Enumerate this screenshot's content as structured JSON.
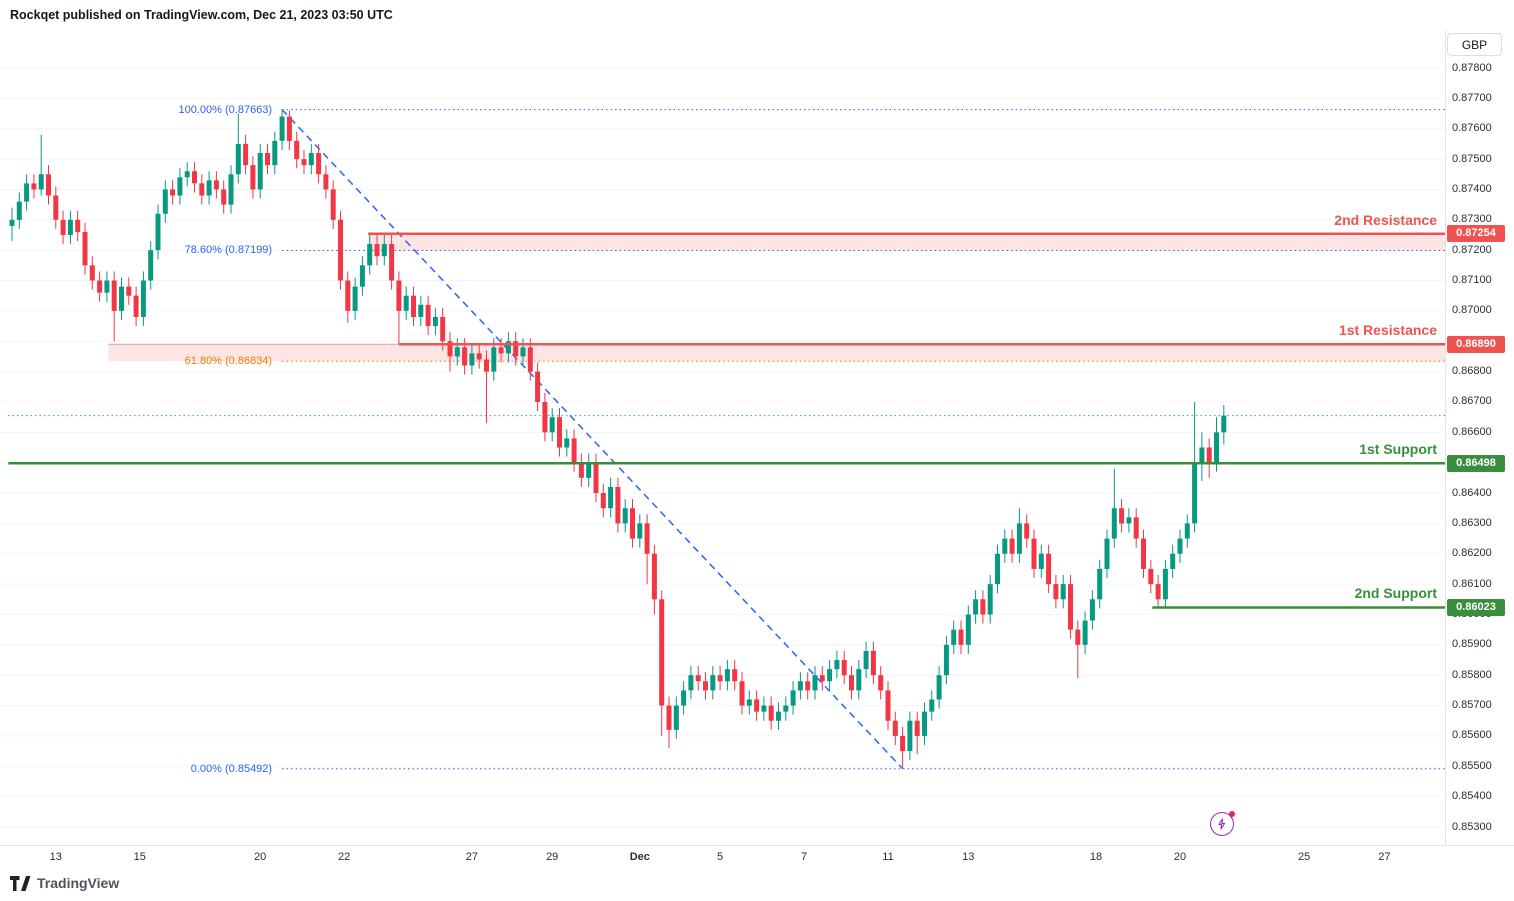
{
  "header": {
    "attribution": "Rockqet published on TradingView.com, Dec 21, 2023 03:50 UTC",
    "currency_button": "GBP"
  },
  "footer": {
    "logo_text": "TradingView"
  },
  "icons": {
    "flash": "lightning-bolt",
    "logo": "tradingview-mark"
  },
  "colors": {
    "up": "#089981",
    "down": "#f23645",
    "resistance": "#ef5350",
    "support": "#388e3c",
    "fib_blue": "#2962ff",
    "fib_orange": "#f57c00",
    "last_price": "#26a69a",
    "axis_text": "#2a2e39",
    "grid": "rgba(42,46,57,0.05)",
    "separator": "#e0e3eb"
  },
  "chart_data": {
    "type": "candlestick",
    "title": "",
    "currency": "GBP",
    "price_axis": {
      "min": 0.853,
      "max": 0.878,
      "tick_step": 0.001,
      "labels": [
        "0.87800",
        "0.87700",
        "0.87600",
        "0.87500",
        "0.87400",
        "0.87300",
        "0.87200",
        "0.87100",
        "0.87000",
        "0.86900",
        "0.86800",
        "0.86700",
        "0.86600",
        "0.86500",
        "0.86400",
        "0.86300",
        "0.86200",
        "0.86100",
        "0.86000",
        "0.85900",
        "0.85800",
        "0.85700",
        "0.85600",
        "0.85500",
        "0.85400",
        "0.85300"
      ]
    },
    "time_axis": [
      {
        "label": "13",
        "index": 6
      },
      {
        "label": "15",
        "index": 17.5
      },
      {
        "label": "20",
        "index": 34
      },
      {
        "label": "22",
        "index": 45.5
      },
      {
        "label": "27",
        "index": 63
      },
      {
        "label": "29",
        "index": 74
      },
      {
        "label": "Dec",
        "index": 86,
        "bold": true
      },
      {
        "label": "5",
        "index": 97
      },
      {
        "label": "7",
        "index": 108.5
      },
      {
        "label": "11",
        "index": 120
      },
      {
        "label": "13",
        "index": 131
      },
      {
        "label": "18",
        "index": 148.5
      },
      {
        "label": "20",
        "index": 160
      },
      {
        "label": "25",
        "index": 177
      },
      {
        "label": "27",
        "index": 188
      }
    ],
    "fib_anchor_index": 37,
    "fib_levels": [
      {
        "label": "100.00% (0.87663)",
        "price": 0.87663,
        "color": "#2962ff"
      },
      {
        "label": "78.60% (0.87199)",
        "price": 0.87199,
        "color": "#2962ff"
      },
      {
        "label": "61.80% (0.86834)",
        "price": 0.86834,
        "color": "#f57c00"
      },
      {
        "label": "0.00% (0.85492)",
        "price": 0.85492,
        "color": "#2962ff"
      }
    ],
    "trendline": {
      "start_index": 37,
      "start_price": 0.87663,
      "end_index": 122,
      "end_price": 0.85492,
      "color": "#2962ff"
    },
    "levels": [
      {
        "label": "2nd Resistance",
        "price": 0.87254,
        "badge": "0.87254",
        "color": "#ef5350",
        "start_index": 48.8
      },
      {
        "label": "1st Resistance",
        "price": 0.8689,
        "badge": "0.86890",
        "color": "#ef5350",
        "start_index": 53
      },
      {
        "label": "1st Support",
        "price": 0.86498,
        "badge": "0.86498",
        "color": "#388e3c",
        "start_index": -0.5
      },
      {
        "label": "2nd Support",
        "price": 0.86023,
        "badge": "0.86023",
        "color": "#388e3c",
        "start_index": 156.2
      }
    ],
    "zones": [
      {
        "top": 0.87254,
        "bottom": 0.87199,
        "start_index": 48.8,
        "fill": "rgba(239,83,80,0.15)"
      },
      {
        "top": 0.8689,
        "bottom": 0.86834,
        "start_index": 13.2,
        "fill": "rgba(239,83,80,0.15)"
      }
    ],
    "last_price": 0.86655,
    "candles": [
      [
        0.8728,
        0.8734,
        0.8723,
        0.873
      ],
      [
        0.873,
        0.8739,
        0.8727,
        0.8736
      ],
      [
        0.8736,
        0.8745,
        0.8733,
        0.8742
      ],
      [
        0.8742,
        0.8745,
        0.8737,
        0.874
      ],
      [
        0.874,
        0.8758,
        0.8738,
        0.8745
      ],
      [
        0.8745,
        0.8748,
        0.8735,
        0.8738
      ],
      [
        0.8738,
        0.8741,
        0.8727,
        0.873
      ],
      [
        0.873,
        0.8733,
        0.8722,
        0.8725
      ],
      [
        0.8725,
        0.8733,
        0.8722,
        0.873
      ],
      [
        0.873,
        0.8733,
        0.8723,
        0.8726
      ],
      [
        0.8726,
        0.8729,
        0.8712,
        0.8715
      ],
      [
        0.8715,
        0.8718,
        0.8707,
        0.871
      ],
      [
        0.871,
        0.8713,
        0.8703,
        0.8706
      ],
      [
        0.8706,
        0.8713,
        0.8703,
        0.871
      ],
      [
        0.871,
        0.8713,
        0.869,
        0.87
      ],
      [
        0.87,
        0.8711,
        0.8697,
        0.8708
      ],
      [
        0.8708,
        0.8711,
        0.8702,
        0.8705
      ],
      [
        0.8705,
        0.8708,
        0.8695,
        0.8698
      ],
      [
        0.8698,
        0.8713,
        0.8695,
        0.871
      ],
      [
        0.871,
        0.8723,
        0.8707,
        0.872
      ],
      [
        0.872,
        0.8735,
        0.8717,
        0.8732
      ],
      [
        0.8732,
        0.8743,
        0.8729,
        0.874
      ],
      [
        0.874,
        0.8743,
        0.8735,
        0.8738
      ],
      [
        0.8738,
        0.8747,
        0.8735,
        0.8744
      ],
      [
        0.8744,
        0.8749,
        0.8741,
        0.8746
      ],
      [
        0.8746,
        0.8749,
        0.8739,
        0.8742
      ],
      [
        0.8742,
        0.8745,
        0.8735,
        0.8738
      ],
      [
        0.8738,
        0.8746,
        0.8735,
        0.8743
      ],
      [
        0.8743,
        0.8746,
        0.8737,
        0.874
      ],
      [
        0.874,
        0.8743,
        0.8732,
        0.8735
      ],
      [
        0.8735,
        0.8748,
        0.8732,
        0.8745
      ],
      [
        0.8745,
        0.8765,
        0.8742,
        0.8755
      ],
      [
        0.8755,
        0.8758,
        0.8745,
        0.8748
      ],
      [
        0.8748,
        0.8751,
        0.8737,
        0.874
      ],
      [
        0.874,
        0.8755,
        0.8737,
        0.8752
      ],
      [
        0.8752,
        0.8755,
        0.8745,
        0.8748
      ],
      [
        0.8748,
        0.8759,
        0.8745,
        0.8756
      ],
      [
        0.8756,
        0.87663,
        0.8753,
        0.8764
      ],
      [
        0.8764,
        0.8766,
        0.8753,
        0.8756
      ],
      [
        0.8756,
        0.8759,
        0.8747,
        0.875
      ],
      [
        0.875,
        0.8753,
        0.8745,
        0.8748
      ],
      [
        0.8748,
        0.8755,
        0.8745,
        0.8752
      ],
      [
        0.8752,
        0.8755,
        0.8742,
        0.8745
      ],
      [
        0.8745,
        0.8748,
        0.8737,
        0.874
      ],
      [
        0.874,
        0.8743,
        0.8727,
        0.873
      ],
      [
        0.873,
        0.8733,
        0.8707,
        0.871
      ],
      [
        0.871,
        0.8713,
        0.8696,
        0.87
      ],
      [
        0.87,
        0.8711,
        0.8697,
        0.8708
      ],
      [
        0.8708,
        0.8718,
        0.8705,
        0.8715
      ],
      [
        0.8715,
        0.87254,
        0.8712,
        0.8722
      ],
      [
        0.8722,
        0.8725,
        0.8715,
        0.8718
      ],
      [
        0.8718,
        0.8725,
        0.8715,
        0.8722
      ],
      [
        0.8722,
        0.8725,
        0.8707,
        0.871
      ],
      [
        0.871,
        0.8713,
        0.8689,
        0.87
      ],
      [
        0.87,
        0.8708,
        0.8697,
        0.8705
      ],
      [
        0.8705,
        0.8708,
        0.8695,
        0.8698
      ],
      [
        0.8698,
        0.8705,
        0.8695,
        0.8702
      ],
      [
        0.8702,
        0.8705,
        0.8692,
        0.8695
      ],
      [
        0.8695,
        0.8701,
        0.8692,
        0.8698
      ],
      [
        0.8698,
        0.8701,
        0.8687,
        0.869
      ],
      [
        0.869,
        0.8693,
        0.868,
        0.8685
      ],
      [
        0.8685,
        0.8691,
        0.8682,
        0.8688
      ],
      [
        0.8688,
        0.8691,
        0.8679,
        0.8682
      ],
      [
        0.8682,
        0.8689,
        0.8679,
        0.8686
      ],
      [
        0.8686,
        0.8689,
        0.8681,
        0.8684
      ],
      [
        0.8684,
        0.8687,
        0.8663,
        0.868
      ],
      [
        0.868,
        0.8691,
        0.8677,
        0.8688
      ],
      [
        0.8688,
        0.8691,
        0.8683,
        0.8686
      ],
      [
        0.8686,
        0.8693,
        0.8683,
        0.869
      ],
      [
        0.869,
        0.8693,
        0.8682,
        0.8685
      ],
      [
        0.8685,
        0.8691,
        0.8682,
        0.8688
      ],
      [
        0.8688,
        0.8691,
        0.8677,
        0.868
      ],
      [
        0.868,
        0.8683,
        0.8667,
        0.867
      ],
      [
        0.867,
        0.8673,
        0.8657,
        0.866
      ],
      [
        0.866,
        0.8668,
        0.8657,
        0.8665
      ],
      [
        0.8665,
        0.8668,
        0.8652,
        0.8655
      ],
      [
        0.8655,
        0.8661,
        0.8652,
        0.8658
      ],
      [
        0.8658,
        0.8661,
        0.8647,
        0.865
      ],
      [
        0.865,
        0.8653,
        0.8642,
        0.8645
      ],
      [
        0.8645,
        0.8653,
        0.8642,
        0.865
      ],
      [
        0.865,
        0.8653,
        0.8637,
        0.864
      ],
      [
        0.864,
        0.8643,
        0.8632,
        0.8635
      ],
      [
        0.8635,
        0.8645,
        0.8632,
        0.8642
      ],
      [
        0.8642,
        0.8645,
        0.8627,
        0.863
      ],
      [
        0.863,
        0.8638,
        0.8627,
        0.8635
      ],
      [
        0.8635,
        0.8638,
        0.8622,
        0.8625
      ],
      [
        0.8625,
        0.8633,
        0.8622,
        0.863
      ],
      [
        0.863,
        0.8633,
        0.861,
        0.862
      ],
      [
        0.862,
        0.8623,
        0.86,
        0.8605
      ],
      [
        0.8605,
        0.8608,
        0.856,
        0.857
      ],
      [
        0.857,
        0.8573,
        0.8556,
        0.8562
      ],
      [
        0.8562,
        0.8573,
        0.8559,
        0.857
      ],
      [
        0.857,
        0.8578,
        0.8567,
        0.8575
      ],
      [
        0.8575,
        0.8583,
        0.8572,
        0.858
      ],
      [
        0.858,
        0.8583,
        0.8575,
        0.8578
      ],
      [
        0.8578,
        0.8581,
        0.8572,
        0.8575
      ],
      [
        0.8575,
        0.8583,
        0.8572,
        0.858
      ],
      [
        0.858,
        0.8583,
        0.8575,
        0.8578
      ],
      [
        0.8578,
        0.8585,
        0.8575,
        0.8582
      ],
      [
        0.8582,
        0.8585,
        0.8575,
        0.8578
      ],
      [
        0.8578,
        0.8581,
        0.8567,
        0.857
      ],
      [
        0.857,
        0.8575,
        0.8567,
        0.8572
      ],
      [
        0.8572,
        0.8575,
        0.8565,
        0.8568
      ],
      [
        0.8568,
        0.8573,
        0.8565,
        0.857
      ],
      [
        0.857,
        0.8573,
        0.8562,
        0.8565
      ],
      [
        0.8565,
        0.8571,
        0.8562,
        0.8568
      ],
      [
        0.8568,
        0.8573,
        0.8565,
        0.857
      ],
      [
        0.857,
        0.8578,
        0.8567,
        0.8575
      ],
      [
        0.8575,
        0.8581,
        0.8572,
        0.8578
      ],
      [
        0.8578,
        0.8581,
        0.8572,
        0.8575
      ],
      [
        0.8575,
        0.8583,
        0.8572,
        0.858
      ],
      [
        0.858,
        0.8583,
        0.8575,
        0.8578
      ],
      [
        0.8578,
        0.8585,
        0.8575,
        0.8582
      ],
      [
        0.8582,
        0.8588,
        0.8579,
        0.8585
      ],
      [
        0.8585,
        0.8588,
        0.8577,
        0.858
      ],
      [
        0.858,
        0.8583,
        0.8572,
        0.8575
      ],
      [
        0.8575,
        0.8585,
        0.8572,
        0.8582
      ],
      [
        0.8582,
        0.8591,
        0.8579,
        0.8588
      ],
      [
        0.8588,
        0.8591,
        0.8577,
        0.858
      ],
      [
        0.858,
        0.8583,
        0.8572,
        0.8575
      ],
      [
        0.8575,
        0.8578,
        0.8562,
        0.8565
      ],
      [
        0.8565,
        0.8568,
        0.8557,
        0.856
      ],
      [
        0.856,
        0.8563,
        0.85492,
        0.8555
      ],
      [
        0.8555,
        0.8568,
        0.8552,
        0.8565
      ],
      [
        0.8565,
        0.8568,
        0.8554,
        0.856
      ],
      [
        0.856,
        0.8571,
        0.8557,
        0.8568
      ],
      [
        0.8568,
        0.8575,
        0.8565,
        0.8572
      ],
      [
        0.8572,
        0.8583,
        0.8569,
        0.858
      ],
      [
        0.858,
        0.8593,
        0.8577,
        0.859
      ],
      [
        0.859,
        0.8598,
        0.8587,
        0.8595
      ],
      [
        0.8595,
        0.8598,
        0.8587,
        0.859
      ],
      [
        0.859,
        0.8603,
        0.8587,
        0.86
      ],
      [
        0.86,
        0.8608,
        0.8597,
        0.8605
      ],
      [
        0.8605,
        0.8608,
        0.8597,
        0.86
      ],
      [
        0.86,
        0.8613,
        0.8597,
        0.861
      ],
      [
        0.861,
        0.8623,
        0.8607,
        0.862
      ],
      [
        0.862,
        0.8628,
        0.8617,
        0.8625
      ],
      [
        0.8625,
        0.8628,
        0.8617,
        0.862
      ],
      [
        0.862,
        0.8635,
        0.8617,
        0.863
      ],
      [
        0.863,
        0.8633,
        0.8622,
        0.8625
      ],
      [
        0.8625,
        0.8628,
        0.8612,
        0.8615
      ],
      [
        0.8615,
        0.8623,
        0.8612,
        0.862
      ],
      [
        0.862,
        0.8623,
        0.8607,
        0.861
      ],
      [
        0.861,
        0.8613,
        0.8602,
        0.8605
      ],
      [
        0.8605,
        0.8613,
        0.8602,
        0.861
      ],
      [
        0.861,
        0.8613,
        0.8592,
        0.8595
      ],
      [
        0.8595,
        0.8598,
        0.8579,
        0.859
      ],
      [
        0.859,
        0.8601,
        0.8587,
        0.8598
      ],
      [
        0.8598,
        0.8608,
        0.8595,
        0.8605
      ],
      [
        0.8605,
        0.8618,
        0.8602,
        0.8615
      ],
      [
        0.8615,
        0.8628,
        0.8612,
        0.8625
      ],
      [
        0.8625,
        0.8648,
        0.8622,
        0.8635
      ],
      [
        0.8635,
        0.8638,
        0.8627,
        0.863
      ],
      [
        0.863,
        0.8635,
        0.8627,
        0.8632
      ],
      [
        0.8632,
        0.8635,
        0.8622,
        0.8625
      ],
      [
        0.8625,
        0.8628,
        0.8612,
        0.8615
      ],
      [
        0.8615,
        0.8618,
        0.8607,
        0.861
      ],
      [
        0.861,
        0.8613,
        0.8602,
        0.8605
      ],
      [
        0.8605,
        0.8618,
        0.86023,
        0.8615
      ],
      [
        0.8615,
        0.8623,
        0.8612,
        0.862
      ],
      [
        0.862,
        0.8628,
        0.8617,
        0.8625
      ],
      [
        0.8625,
        0.8633,
        0.8622,
        0.863
      ],
      [
        0.863,
        0.867,
        0.8627,
        0.865
      ],
      [
        0.865,
        0.866,
        0.8644,
        0.8655
      ],
      [
        0.8655,
        0.8658,
        0.8645,
        0.865
      ],
      [
        0.865,
        0.8665,
        0.8647,
        0.866
      ],
      [
        0.866,
        0.8669,
        0.8656,
        0.86655
      ]
    ]
  }
}
